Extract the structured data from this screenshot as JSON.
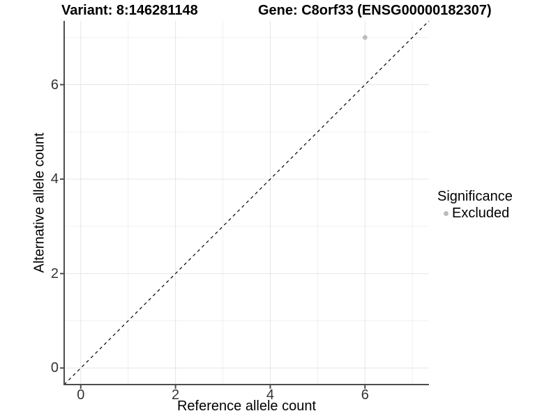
{
  "chart_data": {
    "type": "scatter",
    "titles": {
      "left": "Variant: 8:146281148",
      "right": "Gene: C8orf33 (ENSG00000182307)"
    },
    "xlabel": "Reference allele count",
    "ylabel": "Alternative allele count",
    "xlim": [
      -0.35,
      7.35
    ],
    "ylim": [
      -0.35,
      7.35
    ],
    "xticks": [
      0,
      2,
      4,
      6
    ],
    "yticks": [
      0,
      2,
      4,
      6
    ],
    "xticks_minor": [
      1,
      3,
      5,
      7
    ],
    "yticks_minor": [
      1,
      3,
      5,
      7
    ],
    "grid": "major+minor on white background",
    "reference_line": {
      "type": "identity y=x",
      "linetype": "dashed",
      "color": "#000000"
    },
    "series": [
      {
        "name": "Excluded",
        "color": "#bcbcbc",
        "points": [
          {
            "x": 6,
            "y": 7
          }
        ]
      }
    ],
    "legend": {
      "title": "Significance",
      "position": "right",
      "items": [
        {
          "label": "Excluded",
          "color": "#bcbcbc"
        }
      ]
    }
  },
  "colors": {
    "background": "#ffffff",
    "axis_line": "#4d4d4d",
    "tick_label": "#333333",
    "grid_major": "#e6e6e6",
    "grid_minor": "#f0f0f0",
    "point": "#bcbcbc",
    "dashed_line": "#000000"
  }
}
